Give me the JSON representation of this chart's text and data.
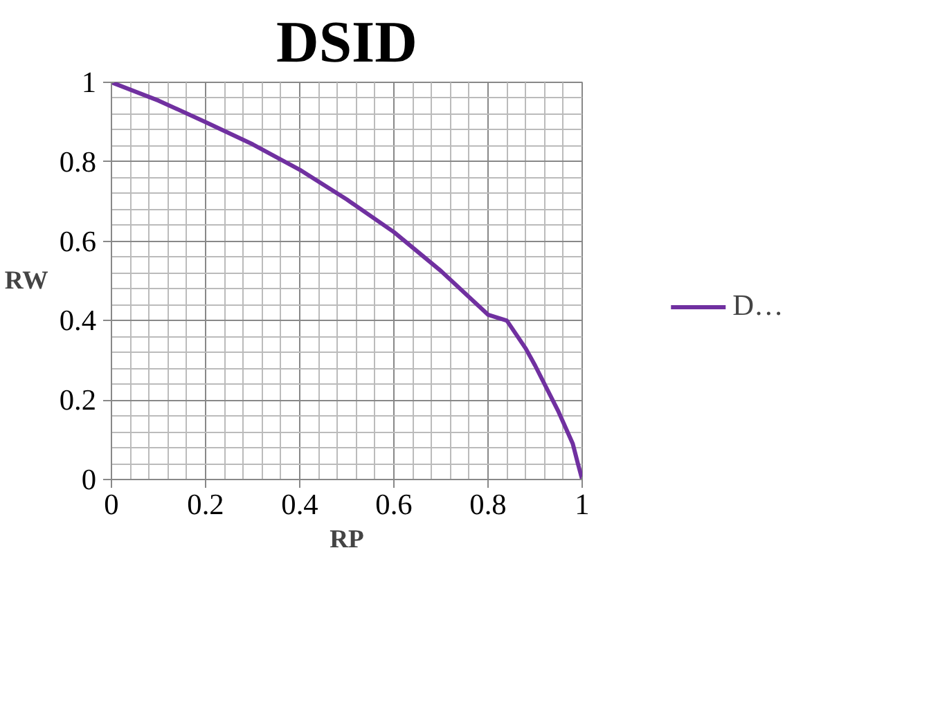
{
  "chart_data": {
    "type": "line",
    "title": "DSID",
    "xlabel": "RP",
    "ylabel": "RW",
    "x": [
      0,
      0.1,
      0.2,
      0.3,
      0.4,
      0.5,
      0.6,
      0.7,
      0.8,
      0.84,
      0.88,
      0.9,
      0.95,
      0.98,
      0.99,
      1
    ],
    "series": [
      {
        "name": "D…",
        "color": "#7030a0",
        "values": [
          1,
          0.954,
          0.9,
          0.844,
          0.78,
          0.705,
          0.623,
          0.525,
          0.415,
          0.4,
          0.33,
          0.287,
          0.17,
          0.09,
          0.044,
          0
        ]
      }
    ],
    "xlim": [
      0,
      1
    ],
    "ylim": [
      0,
      1
    ],
    "xticks": [
      0,
      0.2,
      0.4,
      0.6,
      0.8,
      1
    ],
    "yticks": [
      0,
      0.2,
      0.4,
      0.6,
      0.8,
      1
    ],
    "grid": true,
    "legend": "right",
    "marker": "none",
    "line_style": "solid"
  }
}
